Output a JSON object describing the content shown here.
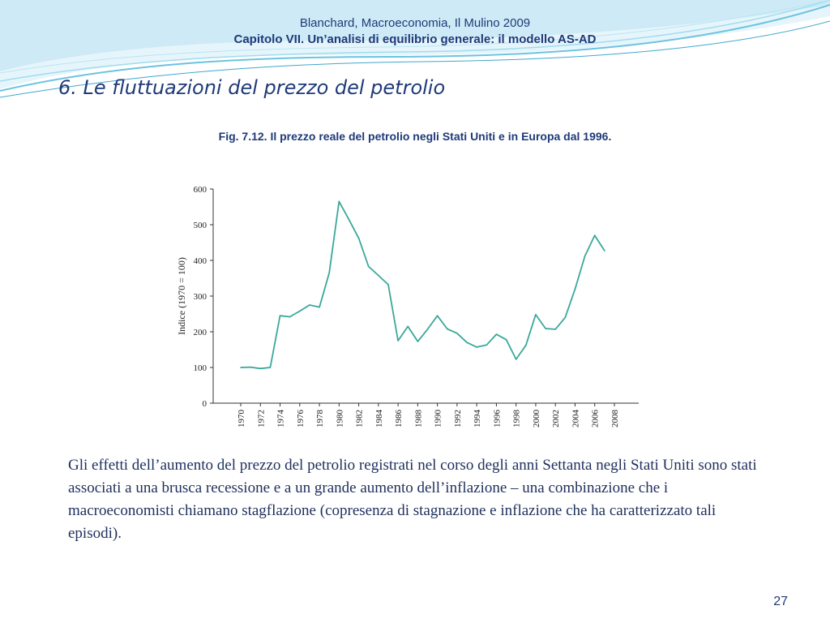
{
  "header": {
    "line1": "Blanchard, Macroeconomia, Il Mulino 2009",
    "line2": "Capitolo VII. Un’analisi di equilibrio generale: il modello AS-AD"
  },
  "slide": {
    "title": "6. Le fluttuazioni del prezzo del petrolio",
    "figure_caption": "Fig. 7.12. Il prezzo reale del petrolio negli  Stati Uniti e in Europa dal 1996.",
    "body": " Gli effetti dell’aumento del prezzo del petrolio registrati nel corso degli anni Settanta negli Stati Uniti sono stati associati a una brusca recessione e a un grande aumento dell’inflazione – una combinazione che i macroeconomisti chiamano stagflazione (copresenza di stagnazione e inflazione che ha caratterizzato tali episodi).",
    "page_number": "27"
  },
  "colors": {
    "accent": "#1f3a78",
    "line": "#3aa89a",
    "wave": "#7fd0e8"
  },
  "chart_data": {
    "type": "line",
    "ylabel": "Indice (1970 = 100)",
    "xlabel": "",
    "ylim": [
      0,
      600
    ],
    "yticks": [
      0,
      100,
      200,
      300,
      400,
      500,
      600
    ],
    "xlim": [
      1970,
      2008
    ],
    "xticks": [
      "1970",
      "1972",
      "1974",
      "1976",
      "1978",
      "1980",
      "1982",
      "1984",
      "1986",
      "1988",
      "1990",
      "1992",
      "1994",
      "1996",
      "1998",
      "2000",
      "2002",
      "2004",
      "2006",
      "2008"
    ],
    "x": [
      1970,
      1971,
      1972,
      1973,
      1974,
      1975,
      1976,
      1977,
      1978,
      1979,
      1980,
      1981,
      1982,
      1983,
      1984,
      1985,
      1986,
      1987,
      1988,
      1989,
      1990,
      1991,
      1992,
      1993,
      1994,
      1995,
      1996,
      1997,
      1998,
      1999,
      2000,
      2001,
      2002,
      2003,
      2004,
      2005,
      2006,
      2007
    ],
    "series": [
      {
        "values": [
          100,
          101,
          97,
          100,
          245,
          242,
          258,
          275,
          269,
          365,
          565,
          515,
          462,
          383,
          358,
          332,
          175,
          215,
          173,
          207,
          245,
          208,
          196,
          170,
          157,
          163,
          193,
          178,
          123,
          162,
          248,
          209,
          207,
          240,
          320,
          412,
          470,
          427
        ]
      }
    ],
    "grid": false
  }
}
